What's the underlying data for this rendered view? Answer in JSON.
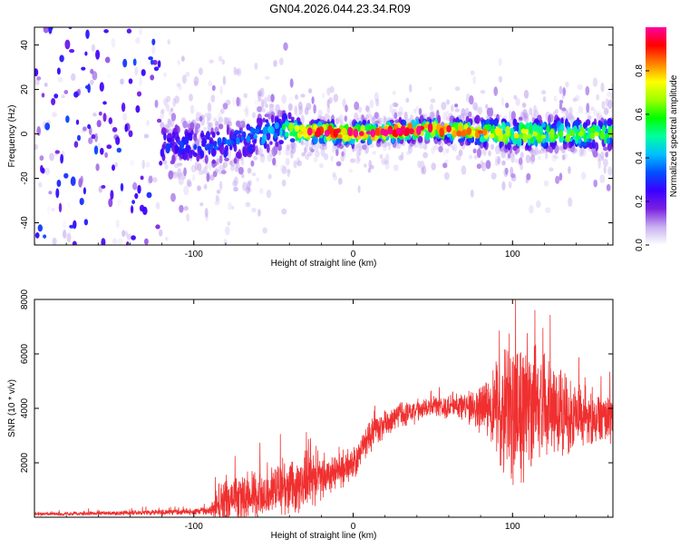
{
  "title": "GN04.2026.044.23.34.R09",
  "chart_data": [
    {
      "type": "heatmap",
      "name": "spectrogram",
      "xlabel": "Height of straight line (km)",
      "ylabel": "Frequency (Hz)",
      "xlim": [
        -200,
        163
      ],
      "ylim": [
        -50,
        48
      ],
      "x_ticks": [
        -100,
        0,
        100
      ],
      "x_tick_labels": [
        "-100",
        "0",
        "100"
      ],
      "y_ticks": [
        -40,
        -20,
        0,
        20,
        40
      ],
      "y_tick_labels": [
        "-40",
        "-20",
        "0",
        "20",
        "40"
      ],
      "colorbar": {
        "label": "Normalized spectral amplitude",
        "range": [
          0.0,
          1.0
        ],
        "ticks": [
          0.0,
          0.2,
          0.4,
          0.6,
          0.8
        ],
        "tick_labels": [
          "0.0",
          "0.2",
          "0.4",
          "0.6",
          "0.8"
        ],
        "colormap": [
          "#ffffff",
          "#c8b0f0",
          "#7a20e0",
          "#3a00ff",
          "#0050ff",
          "#00c0ff",
          "#00ffa0",
          "#00ff00",
          "#a0ff00",
          "#ffff00",
          "#ff8000",
          "#ff0000",
          "#ff00a0"
        ]
      },
      "description_points": [
        {
          "x": -200,
          "center": 0,
          "spread": 48,
          "amplitude": 0.15
        },
        {
          "x": -120,
          "center": -5,
          "spread": 10,
          "amplitude": 0.28
        },
        {
          "x": -80,
          "center": -5,
          "spread": 10,
          "amplitude": 0.32
        },
        {
          "x": -45,
          "center": 2,
          "spread": 8,
          "amplitude": 0.45
        },
        {
          "x": -30,
          "center": 1,
          "spread": 4,
          "amplitude": 0.9
        },
        {
          "x": 0,
          "center": 0,
          "spread": 4,
          "amplitude": 0.95
        },
        {
          "x": 50,
          "center": 2,
          "spread": 4,
          "amplitude": 0.9
        },
        {
          "x": 100,
          "center": 0,
          "spread": 6,
          "amplitude": 0.7
        },
        {
          "x": 163,
          "center": 0,
          "spread": 6,
          "amplitude": 0.6
        }
      ]
    },
    {
      "type": "line",
      "name": "snr",
      "xlabel": "Height of straight line (km)",
      "ylabel": "SNR (10 * v/v)",
      "xlim": [
        -200,
        163
      ],
      "ylim": [
        0,
        8000
      ],
      "x_ticks": [
        -100,
        0,
        100
      ],
      "x_tick_labels": [
        "-100",
        "0",
        "100"
      ],
      "y_ticks": [
        2000,
        4000,
        6000,
        8000
      ],
      "y_tick_labels": [
        "2000",
        "4000",
        "6000",
        "8000"
      ],
      "color": "#f03030",
      "envelope": {
        "x": [
          -200,
          -150,
          -100,
          -90,
          -85,
          -70,
          -50,
          -30,
          -10,
          0,
          10,
          30,
          50,
          70,
          80,
          90,
          100,
          110,
          120,
          130,
          140,
          150,
          163
        ],
        "mean": [
          120,
          150,
          200,
          250,
          500,
          700,
          1000,
          1300,
          1700,
          1900,
          3000,
          3800,
          4100,
          4100,
          3900,
          3900,
          4000,
          4100,
          4000,
          3800,
          3800,
          3700,
          3600
        ],
        "amplitude": [
          60,
          80,
          120,
          150,
          800,
          900,
          1000,
          1000,
          700,
          600,
          600,
          500,
          400,
          500,
          800,
          1800,
          2600,
          2400,
          2000,
          1500,
          1200,
          1000,
          900
        ]
      }
    }
  ]
}
